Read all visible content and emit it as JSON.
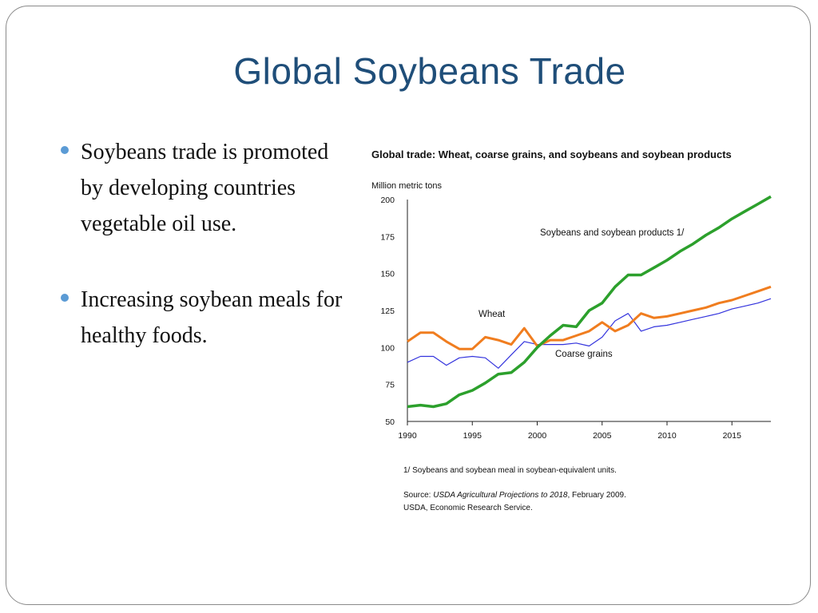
{
  "slide": {
    "title": "Global Soybeans Trade",
    "bullets": [
      "Soybeans trade is promoted by developing countries vegetable oil use.",
      "Increasing soybean meals for healthy foods."
    ]
  },
  "chart_data": {
    "type": "line",
    "title": "Global trade: Wheat, coarse grains, and soybeans and soybean products",
    "ylabel": "Million metric tons",
    "xlabel": "",
    "xlim": [
      1990,
      2018
    ],
    "ylim": [
      50,
      200
    ],
    "x_ticks": [
      1990,
      1995,
      2000,
      2005,
      2010,
      2015
    ],
    "y_ticks": [
      50,
      75,
      100,
      125,
      150,
      175,
      200
    ],
    "x": [
      1990,
      1991,
      1992,
      1993,
      1994,
      1995,
      1996,
      1997,
      1998,
      1999,
      2000,
      2001,
      2002,
      2003,
      2004,
      2005,
      2006,
      2007,
      2008,
      2009,
      2010,
      2011,
      2012,
      2013,
      2014,
      2015,
      2016,
      2017,
      2018
    ],
    "series": [
      {
        "name": "Soybeans and soybean products 1/",
        "color": "#2ca02c",
        "values": [
          60,
          61,
          60,
          62,
          68,
          71,
          76,
          82,
          83,
          90,
          100,
          108,
          115,
          114,
          125,
          130,
          141,
          149,
          149,
          154,
          159,
          165,
          170,
          176,
          181,
          187,
          192,
          197,
          202
        ]
      },
      {
        "name": "Wheat",
        "color": "#f07d1f",
        "values": [
          104,
          110,
          110,
          104,
          99,
          99,
          107,
          105,
          102,
          113,
          101,
          105,
          105,
          108,
          111,
          117,
          111,
          115,
          123,
          120,
          121,
          123,
          125,
          127,
          130,
          132,
          135,
          138,
          141
        ]
      },
      {
        "name": "Coarse grains",
        "color": "#3333dd",
        "values": [
          90,
          94,
          94,
          88,
          93,
          94,
          93,
          86,
          95,
          104,
          102,
          102,
          102,
          103,
          101,
          107,
          118,
          123,
          111,
          114,
          115,
          117,
          119,
          121,
          123,
          126,
          128,
          130,
          133
        ]
      }
    ],
    "footnote": "1/ Soybeans and soybean meal in soybean-equivalent units.",
    "source_prefix": "Source: ",
    "source_italic": "USDA Agricultural Projections to 2018",
    "source_suffix": ", February 2009.",
    "source_line2": "USDA, Economic Research Service."
  }
}
